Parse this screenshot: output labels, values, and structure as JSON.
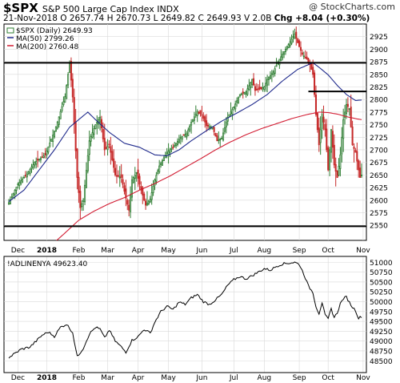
{
  "header": {
    "symbol": "$SPX",
    "name": "S&P 500 Large Cap Index INDX",
    "date": "21-Nov-2018",
    "open": "O 2657.74",
    "high": "H 2670.73",
    "low": "L 2649.82",
    "close": "C 2649.93",
    "volume": "V 2.0B",
    "change": "Chg +8.04 (+0.30%)",
    "watermark": "@ StockCharts.com"
  },
  "colors": {
    "up": "#2e7d32",
    "down": "#c62828",
    "ma50": "#1f2a8c",
    "ma200": "#d21c32",
    "adline": "#000000",
    "grid": "#d9d9d9"
  },
  "chart_data": [
    {
      "type": "candlestick",
      "legend": [
        {
          "label": "$SPX (Daily) 2649.93",
          "marker": "candle"
        },
        {
          "label": "MA(50) 2799.26",
          "color": "#1f2a8c"
        },
        {
          "label": "MA(200) 2760.48",
          "color": "#d21c32"
        }
      ],
      "ylim": [
        2520,
        2950
      ],
      "yticks": [
        2550,
        2575,
        2600,
        2625,
        2650,
        2675,
        2700,
        2725,
        2750,
        2775,
        2800,
        2825,
        2850,
        2875,
        2900,
        2925
      ],
      "xlim": [
        0,
        232
      ],
      "month_labels": [
        {
          "label": "Dec",
          "x": 6
        },
        {
          "label": "2018",
          "x": 25,
          "bold": true
        },
        {
          "label": "Feb",
          "x": 46
        },
        {
          "label": "Mar",
          "x": 65
        },
        {
          "label": "Apr",
          "x": 85
        },
        {
          "label": "May",
          "x": 105
        },
        {
          "label": "Jun",
          "x": 127
        },
        {
          "label": "Jul",
          "x": 148
        },
        {
          "label": "Aug",
          "x": 168
        },
        {
          "label": "Sep",
          "x": 191
        },
        {
          "label": "Oct",
          "x": 210
        },
        {
          "label": "Nov",
          "x": 233
        }
      ],
      "close_anchors": [
        [
          0,
          2595
        ],
        [
          6,
          2632
        ],
        [
          12,
          2652
        ],
        [
          17,
          2675
        ],
        [
          24,
          2690
        ],
        [
          31,
          2745
        ],
        [
          37,
          2806
        ],
        [
          40,
          2872
        ],
        [
          42,
          2805
        ],
        [
          45,
          2645
        ],
        [
          47,
          2585
        ],
        [
          49,
          2600
        ],
        [
          53,
          2718
        ],
        [
          57,
          2750
        ],
        [
          60,
          2765
        ],
        [
          63,
          2700
        ],
        [
          66,
          2710
        ],
        [
          70,
          2650
        ],
        [
          74,
          2645
        ],
        [
          77,
          2604
        ],
        [
          79,
          2580
        ],
        [
          81,
          2640
        ],
        [
          84,
          2655
        ],
        [
          87,
          2620
        ],
        [
          90,
          2590
        ],
        [
          93,
          2602
        ],
        [
          96,
          2640
        ],
        [
          99,
          2668
        ],
        [
          104,
          2695
        ],
        [
          108,
          2705
        ],
        [
          113,
          2725
        ],
        [
          117,
          2732
        ],
        [
          120,
          2755
        ],
        [
          124,
          2776
        ],
        [
          127,
          2770
        ],
        [
          130,
          2748
        ],
        [
          134,
          2745
        ],
        [
          137,
          2718
        ],
        [
          140,
          2723
        ],
        [
          144,
          2765
        ],
        [
          148,
          2785
        ],
        [
          152,
          2810
        ],
        [
          156,
          2815
        ],
        [
          160,
          2840
        ],
        [
          162,
          2818
        ],
        [
          165,
          2821
        ],
        [
          168,
          2825
        ],
        [
          170,
          2840
        ],
        [
          174,
          2855
        ],
        [
          178,
          2880
        ],
        [
          182,
          2900
        ],
        [
          185,
          2915
        ],
        [
          188,
          2930
        ],
        [
          190,
          2913
        ],
        [
          193,
          2890
        ],
        [
          196,
          2880
        ],
        [
          198,
          2870
        ],
        [
          200,
          2850
        ],
        [
          202,
          2770
        ],
        [
          204,
          2710
        ],
        [
          206,
          2770
        ],
        [
          208,
          2740
        ],
        [
          210,
          2660
        ],
        [
          212,
          2740
        ],
        [
          214,
          2670
        ],
        [
          216,
          2645
        ],
        [
          218,
          2690
        ],
        [
          220,
          2760
        ],
        [
          222,
          2790
        ],
        [
          224,
          2782
        ],
        [
          226,
          2710
        ],
        [
          228,
          2695
        ],
        [
          230,
          2660
        ],
        [
          231,
          2645
        ],
        [
          232,
          2650
        ]
      ],
      "ma50_anchors": [
        [
          0,
          2597
        ],
        [
          10,
          2620
        ],
        [
          20,
          2660
        ],
        [
          30,
          2700
        ],
        [
          40,
          2745
        ],
        [
          46,
          2760
        ],
        [
          52,
          2775
        ],
        [
          57,
          2760
        ],
        [
          66,
          2735
        ],
        [
          76,
          2713
        ],
        [
          86,
          2705
        ],
        [
          96,
          2690
        ],
        [
          104,
          2688
        ],
        [
          112,
          2700
        ],
        [
          120,
          2718
        ],
        [
          130,
          2738
        ],
        [
          140,
          2757
        ],
        [
          150,
          2773
        ],
        [
          160,
          2790
        ],
        [
          170,
          2810
        ],
        [
          180,
          2837
        ],
        [
          190,
          2860
        ],
        [
          196,
          2868
        ],
        [
          200,
          2873
        ],
        [
          204,
          2864
        ],
        [
          210,
          2849
        ],
        [
          216,
          2828
        ],
        [
          222,
          2810
        ],
        [
          228,
          2798
        ],
        [
          232,
          2799
        ]
      ],
      "ma200_anchors": [
        [
          24,
          2500
        ],
        [
          36,
          2532
        ],
        [
          46,
          2560
        ],
        [
          56,
          2578
        ],
        [
          66,
          2593
        ],
        [
          76,
          2605
        ],
        [
          86,
          2620
        ],
        [
          96,
          2633
        ],
        [
          106,
          2648
        ],
        [
          116,
          2665
        ],
        [
          126,
          2682
        ],
        [
          136,
          2700
        ],
        [
          146,
          2716
        ],
        [
          156,
          2730
        ],
        [
          166,
          2742
        ],
        [
          176,
          2752
        ],
        [
          186,
          2762
        ],
        [
          196,
          2770
        ],
        [
          204,
          2775
        ],
        [
          210,
          2774
        ],
        [
          216,
          2771
        ],
        [
          222,
          2766
        ],
        [
          228,
          2762
        ],
        [
          232,
          2760
        ]
      ],
      "resistance_lines": [
        {
          "y": 2873,
          "x0": 0,
          "x1": 232
        },
        {
          "y": 2548,
          "x0": 0,
          "x1": 232
        },
        {
          "y": 2816,
          "x0": 197,
          "x1": 232
        }
      ]
    },
    {
      "type": "line",
      "legend": [
        {
          "label": "!ADLINENYA 49623.40"
        }
      ],
      "ylim": [
        48200,
        51150
      ],
      "yticks": [
        48500,
        48750,
        49000,
        49250,
        49500,
        49750,
        50000,
        50250,
        50500,
        50750,
        51000
      ],
      "series_anchors": [
        [
          0,
          48580
        ],
        [
          8,
          48790
        ],
        [
          14,
          48850
        ],
        [
          18,
          49000
        ],
        [
          22,
          49150
        ],
        [
          26,
          49230
        ],
        [
          30,
          49120
        ],
        [
          34,
          49350
        ],
        [
          38,
          49430
        ],
        [
          42,
          49220
        ],
        [
          45,
          48600
        ],
        [
          49,
          48820
        ],
        [
          53,
          49180
        ],
        [
          57,
          49350
        ],
        [
          60,
          49300
        ],
        [
          63,
          49080
        ],
        [
          66,
          49280
        ],
        [
          70,
          49000
        ],
        [
          74,
          48850
        ],
        [
          77,
          48720
        ],
        [
          81,
          49020
        ],
        [
          85,
          49110
        ],
        [
          89,
          49300
        ],
        [
          93,
          49200
        ],
        [
          96,
          49480
        ],
        [
          100,
          49750
        ],
        [
          104,
          49880
        ],
        [
          108,
          49800
        ],
        [
          112,
          49990
        ],
        [
          116,
          49930
        ],
        [
          120,
          50100
        ],
        [
          124,
          50180
        ],
        [
          128,
          50000
        ],
        [
          132,
          49930
        ],
        [
          136,
          50050
        ],
        [
          140,
          50180
        ],
        [
          144,
          50420
        ],
        [
          148,
          50560
        ],
        [
          152,
          50640
        ],
        [
          156,
          50580
        ],
        [
          160,
          50660
        ],
        [
          164,
          50750
        ],
        [
          168,
          50840
        ],
        [
          172,
          50800
        ],
        [
          176,
          50900
        ],
        [
          180,
          50960
        ],
        [
          184,
          50980
        ],
        [
          188,
          51000
        ],
        [
          191,
          50950
        ],
        [
          194,
          50700
        ],
        [
          197,
          50400
        ],
        [
          200,
          50230
        ],
        [
          202,
          49880
        ],
        [
          204,
          49700
        ],
        [
          206,
          49980
        ],
        [
          208,
          49650
        ],
        [
          210,
          49560
        ],
        [
          212,
          49820
        ],
        [
          214,
          49600
        ],
        [
          216,
          49720
        ],
        [
          218,
          49950
        ],
        [
          220,
          50080
        ],
        [
          222,
          50120
        ],
        [
          224,
          49980
        ],
        [
          226,
          49860
        ],
        [
          228,
          49780
        ],
        [
          230,
          49580
        ],
        [
          232,
          49623
        ]
      ]
    }
  ]
}
